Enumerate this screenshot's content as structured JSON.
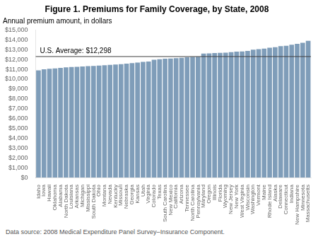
{
  "chart_data": {
    "type": "bar",
    "title": "Figure 1. Premiums for Family Coverage, by State, 2008",
    "ylabel": "Annual premium amount, in dollars",
    "footnote": "Data source: 2008 Medical Expenditure Panel Survey–Insurance Component.",
    "categories": [
      "Idaho",
      "Iowa",
      "Hawaii",
      "Oklahoma",
      "Alabama",
      "North Dakota",
      "Louisiana",
      "Arkansas",
      "Michigan",
      "Mississippi",
      "South Dakota",
      "Ohio",
      "Montana",
      "Nevada",
      "Kentucky",
      "Missouri",
      "Nebraska",
      "Georgia",
      "Kansas",
      "Utah",
      "Virginia",
      "Colorado",
      "Texas",
      "South Carolina",
      "New Mexico",
      "California",
      "Arizona",
      "Tennessee",
      "North Carolina",
      "Pennsylvania",
      "Maryland",
      "Oregon",
      "Illinois",
      "Florida",
      "Wyoming",
      "New Jersey",
      "New York",
      "West Virginia",
      "Wisconsin",
      "Washington",
      "Vermont",
      "Maine",
      "Rhode Island",
      "Alaska",
      "Delaware",
      "Connecticut",
      "Indiana",
      "New Hampshire",
      "Minnesota",
      "Massachusetts"
    ],
    "values": [
      10900,
      11000,
      11050,
      11100,
      11150,
      11200,
      11230,
      11260,
      11300,
      11330,
      11350,
      11380,
      11420,
      11450,
      11480,
      11520,
      11580,
      11630,
      11680,
      11750,
      11800,
      11980,
      12020,
      12080,
      12100,
      12140,
      12180,
      12220,
      12260,
      12280,
      12600,
      12620,
      12650,
      12680,
      12700,
      12750,
      12800,
      12820,
      12880,
      13000,
      13050,
      13100,
      13200,
      13250,
      13350,
      13400,
      13500,
      13600,
      13700,
      13900
    ],
    "color": "#7f9db9",
    "ylim": [
      0,
      15000
    ],
    "yticks": [
      {
        "value": 0,
        "label": "$0"
      },
      {
        "value": 1000,
        "label": "$1,000"
      },
      {
        "value": 2000,
        "label": "$2,000"
      },
      {
        "value": 3000,
        "label": "$3,000"
      },
      {
        "value": 4000,
        "label": "$4,000"
      },
      {
        "value": 5000,
        "label": "$5,000"
      },
      {
        "value": 6000,
        "label": "$6,000"
      },
      {
        "value": 7000,
        "label": "$7,000"
      },
      {
        "value": 8000,
        "label": "$8,000"
      },
      {
        "value": 9000,
        "label": "$9,000"
      },
      {
        "value": 10000,
        "label": "$10,000"
      },
      {
        "value": 11000,
        "label": "$11,000"
      },
      {
        "value": 12000,
        "label": "$12,000"
      },
      {
        "value": 13000,
        "label": "$13,000"
      },
      {
        "value": 14000,
        "label": "$14,000"
      },
      {
        "value": 15000,
        "label": "$15,000"
      }
    ],
    "grid": false,
    "reference_line": {
      "value": 12298,
      "label": "U.S. Average: $12,298",
      "color": "#3f3f3f"
    }
  }
}
